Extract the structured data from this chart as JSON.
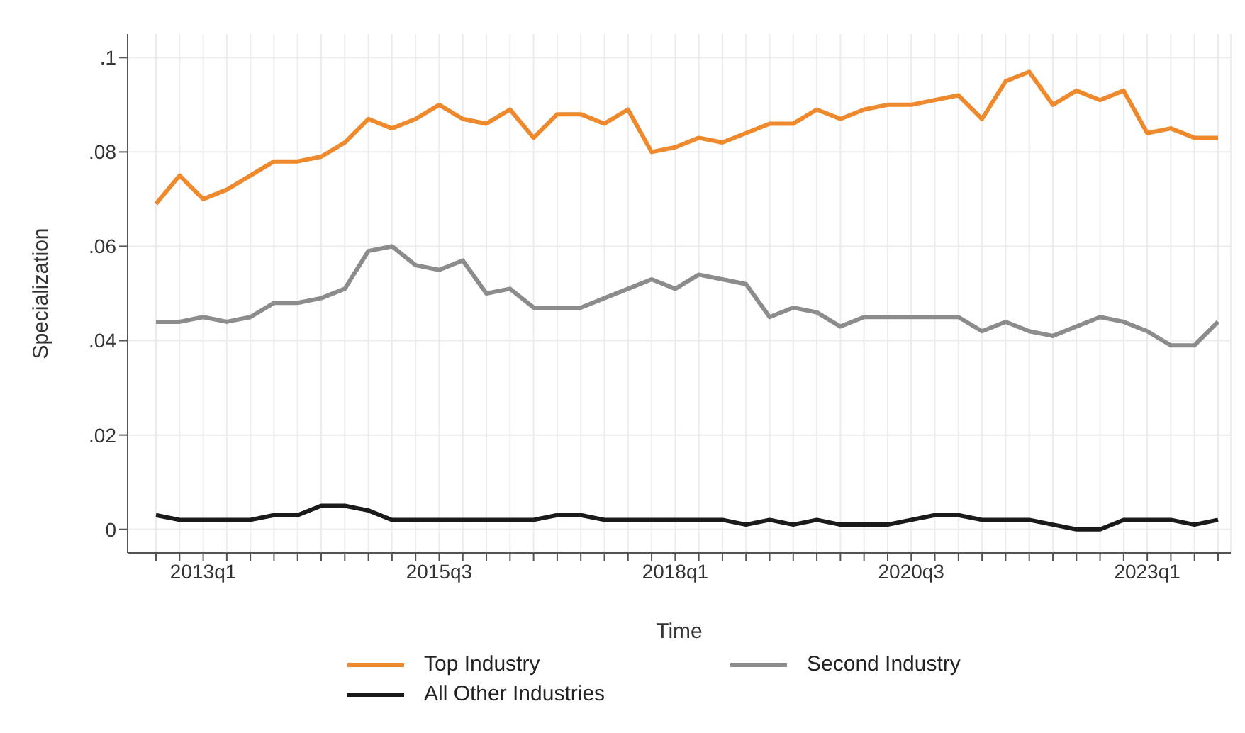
{
  "chart_data": {
    "type": "line",
    "xlabel": "Time",
    "ylabel": "Specialization",
    "categories": [
      null,
      null,
      "2013q1",
      null,
      null,
      null,
      null,
      null,
      null,
      null,
      null,
      null,
      "2015q3",
      null,
      null,
      null,
      null,
      null,
      null,
      null,
      null,
      null,
      "2018q1",
      null,
      null,
      null,
      null,
      null,
      null,
      null,
      null,
      null,
      "2020q3",
      null,
      null,
      null,
      null,
      null,
      null,
      null,
      null,
      null,
      "2023q1",
      null,
      null,
      null
    ],
    "series": [
      {
        "name": "Top Industry",
        "color": "#ee8a2d",
        "values": [
          0.069,
          0.075,
          0.07,
          0.072,
          0.075,
          0.078,
          0.078,
          0.079,
          0.082,
          0.087,
          0.085,
          0.087,
          0.09,
          0.087,
          0.086,
          0.089,
          0.083,
          0.088,
          0.088,
          0.086,
          0.089,
          0.08,
          0.081,
          0.083,
          0.082,
          0.084,
          0.086,
          0.086,
          0.089,
          0.087,
          0.089,
          0.09,
          0.09,
          0.091,
          0.092,
          0.087,
          0.095,
          0.097,
          0.09,
          0.093,
          0.091,
          0.093,
          0.084,
          0.085,
          0.083,
          0.083
        ]
      },
      {
        "name": "Second Industry",
        "color": "#8c8c8c",
        "values": [
          0.044,
          0.044,
          0.045,
          0.044,
          0.045,
          0.048,
          0.048,
          0.049,
          0.051,
          0.059,
          0.06,
          0.056,
          0.055,
          0.057,
          0.05,
          0.051,
          0.047,
          0.047,
          0.047,
          0.049,
          0.051,
          0.053,
          0.051,
          0.054,
          0.053,
          0.052,
          0.045,
          0.047,
          0.046,
          0.043,
          0.045,
          0.045,
          0.045,
          0.045,
          0.045,
          0.042,
          0.044,
          0.042,
          0.041,
          0.043,
          0.045,
          0.044,
          0.042,
          0.039,
          0.039,
          0.044
        ]
      },
      {
        "name": "All Other Industries",
        "color": "#1a1a1a",
        "values": [
          0.003,
          0.002,
          0.002,
          0.002,
          0.002,
          0.003,
          0.003,
          0.005,
          0.005,
          0.004,
          0.002,
          0.002,
          0.002,
          0.002,
          0.002,
          0.002,
          0.002,
          0.003,
          0.003,
          0.002,
          0.002,
          0.002,
          0.002,
          0.002,
          0.002,
          0.001,
          0.002,
          0.001,
          0.002,
          0.001,
          0.001,
          0.001,
          0.002,
          0.003,
          0.003,
          0.002,
          0.002,
          0.002,
          0.001,
          0.0,
          0.0,
          0.002,
          0.002,
          0.002,
          0.001,
          0.002
        ]
      }
    ],
    "ylim": [
      -0.005,
      0.105
    ],
    "yticks": [
      0,
      {
        "value": 0.02,
        "label": ".02"
      },
      {
        "value": 0.04,
        "label": ".04"
      },
      {
        "value": 0.06,
        "label": ".06"
      },
      {
        "value": 0.08,
        "label": ".08"
      },
      {
        "value": 0.1,
        "label": ".1"
      }
    ],
    "grid": true,
    "legend": "bottom",
    "marker": "none",
    "line_style": "solid"
  }
}
